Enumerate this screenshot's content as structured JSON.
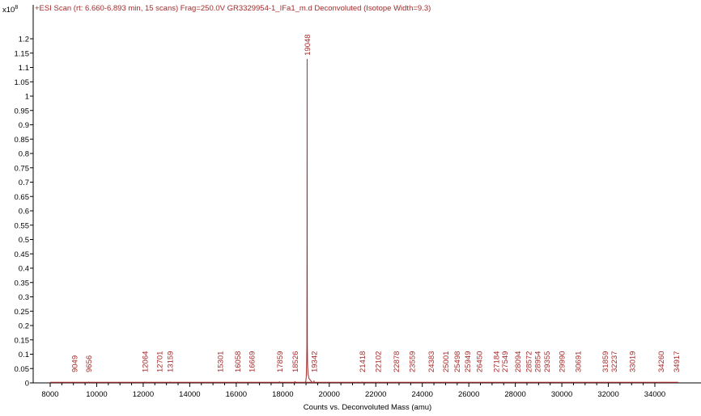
{
  "chart_data": {
    "type": "line",
    "title": "+ESI Scan (rt: 6.660-6.893 min, 15 scans) Frag=250.0V GR3329954-1_IFa1_m.d  Deconvoluted (Isotope Width=9.3)",
    "y_multiplier": "x10",
    "y_exponent": "8",
    "xlabel": "Counts vs. Deconvoluted Mass (amu)",
    "ylabel": "",
    "xlim": [
      7700,
      35200
    ],
    "ylim": [
      0,
      1.25
    ],
    "x_ticks": [
      8000,
      10000,
      12000,
      14000,
      16000,
      18000,
      20000,
      22000,
      24000,
      26000,
      28000,
      30000,
      32000,
      34000
    ],
    "x_tick_labels": [
      "8000",
      "10000",
      "12000",
      "14000",
      "16000",
      "18000",
      "20000",
      "22000",
      "24000",
      "26000",
      "28000",
      "30000",
      "32000",
      "34000"
    ],
    "y_ticks": [
      0,
      0.05,
      0.1,
      0.15,
      0.2,
      0.25,
      0.3,
      0.35,
      0.4,
      0.45,
      0.5,
      0.55,
      0.6,
      0.65,
      0.7,
      0.75,
      0.8,
      0.85,
      0.9,
      0.95,
      1,
      1.05,
      1.1,
      1.15,
      1.2
    ],
    "y_tick_labels": [
      "0",
      "0.05",
      "0.1",
      "0.15",
      "0.2",
      "0.25",
      "0.3",
      "0.35",
      "0.4",
      "0.45",
      "0.5",
      "0.55",
      "0.6",
      "0.65",
      "0.7",
      "0.75",
      "0.8",
      "0.85",
      "0.9",
      "0.95",
      "1",
      "1.05",
      "1.1",
      "1.15",
      "1.2"
    ],
    "series": [
      {
        "color": "#a52a2a",
        "peaks": [
          {
            "mass": 9049,
            "label": "9049",
            "intensity": 0.003
          },
          {
            "mass": 9656,
            "label": "9656",
            "intensity": 0.004
          },
          {
            "mass": 12064,
            "label": "12064",
            "intensity": 0.004
          },
          {
            "mass": 12701,
            "label": "12701",
            "intensity": 0.003
          },
          {
            "mass": 13159,
            "label": "13159",
            "intensity": 0.004
          },
          {
            "mass": 15301,
            "label": "15301",
            "intensity": 0.003
          },
          {
            "mass": 16058,
            "label": "16058",
            "intensity": 0.004
          },
          {
            "mass": 16669,
            "label": "16669",
            "intensity": 0.003
          },
          {
            "mass": 17859,
            "label": "17859",
            "intensity": 0.005
          },
          {
            "mass": 18526,
            "label": "18526",
            "intensity": 0.006
          },
          {
            "mass": 19048,
            "label": "19048",
            "intensity": 1.13
          },
          {
            "mass": 19342,
            "label": "19342",
            "intensity": 0.008
          },
          {
            "mass": 21418,
            "label": "21418",
            "intensity": 0.004
          },
          {
            "mass": 22102,
            "label": "22102",
            "intensity": 0.003
          },
          {
            "mass": 22878,
            "label": "22878",
            "intensity": 0.003
          },
          {
            "mass": 23559,
            "label": "23559",
            "intensity": 0.003
          },
          {
            "mass": 24383,
            "label": "24383",
            "intensity": 0.003
          },
          {
            "mass": 25001,
            "label": "25001",
            "intensity": 0.003
          },
          {
            "mass": 25498,
            "label": "25498",
            "intensity": 0.003
          },
          {
            "mass": 25949,
            "label": "25949",
            "intensity": 0.003
          },
          {
            "mass": 26450,
            "label": "26450",
            "intensity": 0.003
          },
          {
            "mass": 27184,
            "label": "27184",
            "intensity": 0.003
          },
          {
            "mass": 27549,
            "label": "27549",
            "intensity": 0.003
          },
          {
            "mass": 28094,
            "label": "28094",
            "intensity": 0.003
          },
          {
            "mass": 28572,
            "label": "28572",
            "intensity": 0.003
          },
          {
            "mass": 28954,
            "label": "28954",
            "intensity": 0.003
          },
          {
            "mass": 29355,
            "label": "29355",
            "intensity": 0.003
          },
          {
            "mass": 29990,
            "label": "29990",
            "intensity": 0.003
          },
          {
            "mass": 30691,
            "label": "30691",
            "intensity": 0.003
          },
          {
            "mass": 31859,
            "label": "31859",
            "intensity": 0.003
          },
          {
            "mass": 32237,
            "label": "32237",
            "intensity": 0.003
          },
          {
            "mass": 33019,
            "label": "33019",
            "intensity": 0.003
          },
          {
            "mass": 34260,
            "label": "34260",
            "intensity": 0.003
          },
          {
            "mass": 34917,
            "label": "34917",
            "intensity": 0.003
          }
        ],
        "main_peak_profile": {
          "x": [
            18950,
            18990,
            19010,
            19025,
            19038,
            19044,
            19048,
            19052,
            19058,
            19070,
            19090,
            19130,
            19200,
            19280
          ],
          "y": [
            0,
            0.005,
            0.02,
            0.06,
            0.13,
            0.5,
            1.13,
            0.5,
            0.13,
            0.06,
            0.03,
            0.015,
            0.008,
            0
          ]
        }
      }
    ],
    "grid": false,
    "legend": "none"
  }
}
